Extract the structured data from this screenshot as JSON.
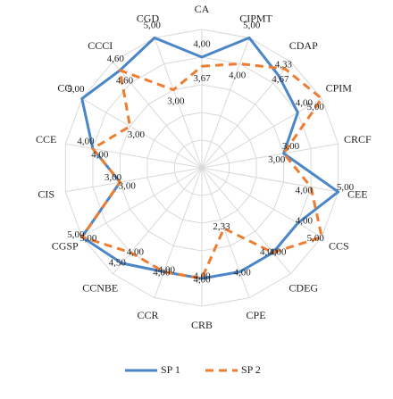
{
  "chart_data": {
    "type": "radar",
    "categories": [
      "CA",
      "CIPMT",
      "CDAP",
      "CPIM",
      "CRCF",
      "CEE",
      "CCS",
      "CDEG",
      "CPE",
      "CRB",
      "CCR",
      "CCNBE",
      "CGSP",
      "CIS",
      "CCE",
      "CO",
      "CCCI",
      "CGD"
    ],
    "rlim": [
      0,
      5
    ],
    "rticks": [
      1,
      2,
      3,
      4,
      5
    ],
    "grid": true,
    "legend": "bottom",
    "series": [
      {
        "name": "SP 1",
        "color": "#4a86c8",
        "dash": false,
        "values": [
          4,
          5,
          4.33,
          4,
          3,
          5,
          4,
          4,
          4,
          4,
          4,
          4.5,
          5,
          3,
          4,
          5,
          4.6,
          5
        ],
        "value_labels": [
          "4,00",
          "5,00",
          "4,33",
          "4,00",
          "3,00",
          "5,00",
          "4,00",
          "4,00",
          "4,00",
          "4,00",
          "4,00",
          "4,50",
          "5,00",
          "3,00",
          "4,00",
          "5,00",
          "4,60",
          "5,00"
        ]
      },
      {
        "name": "SP 2",
        "color": "#ed7d31",
        "dash": true,
        "values": [
          3.67,
          4,
          4.67,
          5,
          3,
          4,
          5,
          4,
          2.33,
          4,
          4,
          4,
          5,
          3,
          4,
          3,
          4.6,
          3
        ],
        "value_labels": [
          "3,67",
          "4,00",
          "4,67",
          "5,00",
          "3,00",
          "4,00",
          "5,00",
          "4,00",
          "2,33",
          "4,00",
          "4,00",
          "4,00",
          "5,00",
          "3,00",
          "4,00",
          "3,00",
          "4,60",
          "3,00"
        ]
      }
    ]
  }
}
